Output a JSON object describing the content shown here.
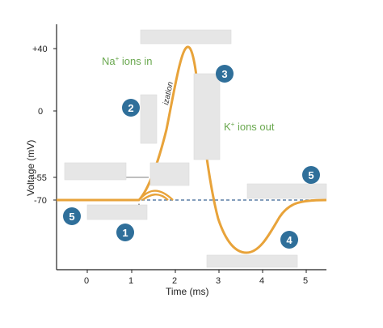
{
  "axes": {
    "y_title": "Voltage (mV)",
    "x_title": "Time (ms)",
    "y_ticks": [
      "+40",
      "0",
      "-55",
      "-70"
    ],
    "x_ticks": [
      "0",
      "1",
      "2",
      "3",
      "4",
      "5"
    ]
  },
  "ions": {
    "na_base": "Na",
    "na_sup": "+",
    "na_suffix": " ions in",
    "k_base": "K",
    "k_sup": "+",
    "k_suffix": " ions out"
  },
  "partial_word": "ization",
  "markers": [
    "1",
    "2",
    "3",
    "4",
    "5",
    "5"
  ],
  "colors": {
    "curve": "#e8a33a",
    "baseline": "#5b7fa6",
    "marker": "#2f6f9a",
    "ion_text": "#6aa84f",
    "label_box": "#e6e6e6"
  }
}
